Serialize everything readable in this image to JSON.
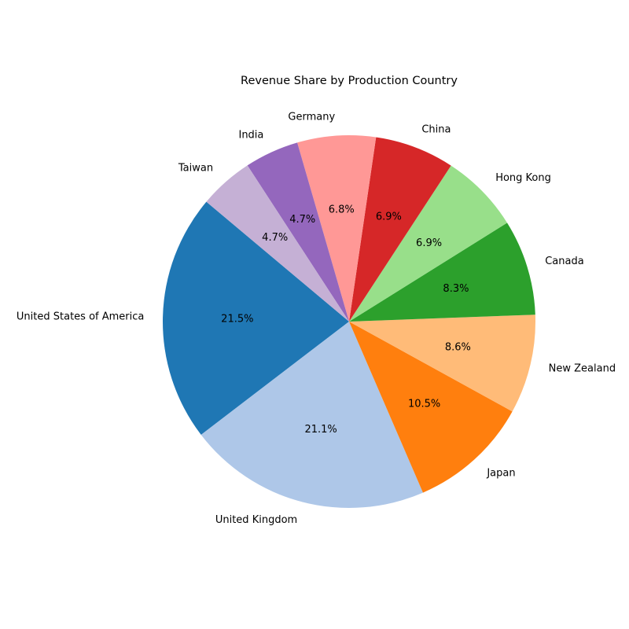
{
  "chart_data": {
    "type": "pie",
    "title": "Revenue Share by Production Country",
    "start_angle_deg": 140,
    "direction": "counterclockwise",
    "slices": [
      {
        "label": "United States of America",
        "pct": 21.5,
        "pct_label": "21.5%",
        "color": "#1f77b4"
      },
      {
        "label": "United Kingdom",
        "pct": 21.1,
        "pct_label": "21.1%",
        "color": "#aec7e8"
      },
      {
        "label": "Japan",
        "pct": 10.5,
        "pct_label": "10.5%",
        "color": "#ff7f0e"
      },
      {
        "label": "New Zealand",
        "pct": 8.6,
        "pct_label": "8.6%",
        "color": "#ffbb78"
      },
      {
        "label": "Canada",
        "pct": 8.3,
        "pct_label": "8.3%",
        "color": "#2ca02c"
      },
      {
        "label": "Hong Kong",
        "pct": 6.9,
        "pct_label": "6.9%",
        "color": "#98df8a"
      },
      {
        "label": "China",
        "pct": 6.9,
        "pct_label": "6.9%",
        "color": "#d62728"
      },
      {
        "label": "Germany",
        "pct": 6.8,
        "pct_label": "6.8%",
        "color": "#ff9896"
      },
      {
        "label": "India",
        "pct": 4.7,
        "pct_label": "4.7%",
        "color": "#9467bd"
      },
      {
        "label": "Taiwan",
        "pct": 4.7,
        "pct_label": "4.7%",
        "color": "#c5b0d5"
      }
    ]
  }
}
